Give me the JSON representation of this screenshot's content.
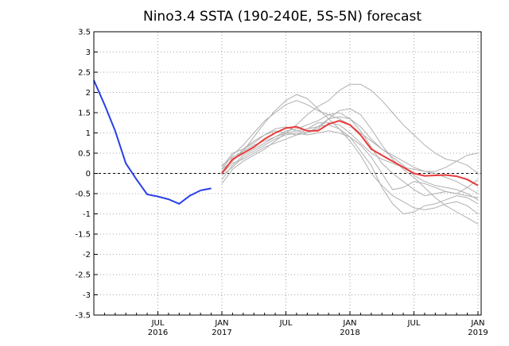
{
  "chart_data": {
    "type": "line",
    "title": "Nino3.4 SSTA (190-240E, 5S-5N) forecast",
    "xlabel": "",
    "ylabel": "",
    "ylim": [
      -3.5,
      3.5
    ],
    "y_ticks": [
      "3.5",
      "3",
      "2.5",
      "2",
      "1.5",
      "1",
      "0.5",
      "0",
      "-0.5",
      "-1",
      "-1.5",
      "-2",
      "-2.5",
      "-3",
      "-3.5"
    ],
    "x_ticks": [
      {
        "month": 6,
        "line1": "JUL",
        "line2": "2016"
      },
      {
        "month": 12,
        "line1": "JAN",
        "line2": "2017"
      },
      {
        "month": 18,
        "line1": "JUL",
        "line2": ""
      },
      {
        "month": 24,
        "line1": "JAN",
        "line2": "2018"
      },
      {
        "month": 30,
        "line1": "JUL",
        "line2": ""
      },
      {
        "month": 36,
        "line1": "JAN",
        "line2": "2019"
      }
    ],
    "x_unit": "months since JAN 2016",
    "xlim": [
      0,
      36.3
    ],
    "grid": true,
    "zero_line": true,
    "colors": {
      "observed": "#2a3fe8",
      "mean": "#e83a3a",
      "members": "#b0b0b0"
    },
    "series": [
      {
        "role": "observed",
        "x": [
          0,
          1,
          2,
          3,
          4,
          5,
          6,
          7,
          8,
          9,
          10,
          11
        ],
        "y": [
          2.3,
          1.7,
          1.05,
          0.25,
          -0.15,
          -0.52,
          -0.57,
          -0.64,
          -0.75,
          -0.55,
          -0.42,
          -0.37
        ]
      },
      {
        "role": "ensemble-mean",
        "x": [
          12,
          13,
          14,
          15,
          16,
          17,
          18,
          19,
          20,
          21,
          22,
          23,
          24,
          25,
          26,
          27,
          28,
          29,
          30,
          31,
          32,
          33,
          34,
          35,
          36
        ],
        "y": [
          0.0,
          0.35,
          0.5,
          0.65,
          0.85,
          1.0,
          1.12,
          1.15,
          1.05,
          1.05,
          1.22,
          1.3,
          1.2,
          0.95,
          0.6,
          0.45,
          0.3,
          0.15,
          0.0,
          -0.06,
          -0.05,
          -0.04,
          -0.07,
          -0.15,
          -0.3
        ]
      },
      {
        "role": "member",
        "x": [
          12,
          13,
          14,
          15,
          16,
          17,
          18,
          19,
          20,
          21,
          22,
          23,
          24,
          25,
          26,
          27,
          28,
          29,
          30,
          31,
          32,
          33,
          34,
          35,
          36
        ],
        "y": [
          0.15,
          0.5,
          0.6,
          0.75,
          0.95,
          1.1,
          1.15,
          1.05,
          1.0,
          1.1,
          1.35,
          1.55,
          1.6,
          1.45,
          1.1,
          0.7,
          0.35,
          0.1,
          -0.1,
          -0.35,
          -0.6,
          -0.8,
          -0.95,
          -1.1,
          -1.25
        ]
      },
      {
        "role": "member",
        "x": [
          12,
          13,
          14,
          15,
          16,
          17,
          18,
          19,
          20,
          21,
          22,
          23,
          24,
          25,
          26,
          27,
          28,
          29,
          30,
          31,
          32,
          33,
          34,
          35,
          36
        ],
        "y": [
          0.1,
          0.45,
          0.7,
          1.0,
          1.3,
          1.5,
          1.7,
          1.8,
          1.7,
          1.55,
          1.45,
          1.35,
          1.2,
          1.0,
          0.8,
          0.6,
          0.45,
          0.3,
          0.15,
          0.05,
          0.0,
          -0.1,
          -0.2,
          -0.35,
          -0.5
        ]
      },
      {
        "role": "member",
        "x": [
          12,
          13,
          14,
          15,
          16,
          17,
          18,
          19,
          20,
          21,
          22,
          23,
          24,
          25,
          26,
          27,
          28,
          29,
          30,
          31,
          32,
          33,
          34,
          35,
          36
        ],
        "y": [
          -0.15,
          0.2,
          0.45,
          0.6,
          0.75,
          0.9,
          1.05,
          1.1,
          1.2,
          1.3,
          1.45,
          1.5,
          1.35,
          1.05,
          0.65,
          0.25,
          0.0,
          -0.2,
          -0.4,
          -0.55,
          -0.5,
          -0.45,
          -0.5,
          -0.55,
          -0.6
        ]
      },
      {
        "role": "member",
        "x": [
          12,
          13,
          14,
          15,
          16,
          17,
          18,
          19,
          20,
          21,
          22,
          23,
          24,
          25,
          26,
          27,
          28,
          29,
          30,
          31,
          32,
          33,
          34,
          35,
          36
        ],
        "y": [
          0.05,
          0.3,
          0.55,
          0.9,
          1.25,
          1.55,
          1.8,
          1.95,
          1.85,
          1.6,
          1.35,
          1.1,
          0.8,
          0.45,
          0.0,
          -0.3,
          -0.55,
          -0.7,
          -0.85,
          -0.9,
          -0.85,
          -0.75,
          -0.7,
          -0.8,
          -1.0
        ]
      },
      {
        "role": "member",
        "x": [
          12,
          13,
          14,
          15,
          16,
          17,
          18,
          19,
          20,
          21,
          22,
          23,
          24,
          25,
          26,
          27,
          28,
          29,
          30,
          31,
          32,
          33,
          34,
          35,
          36
        ],
        "y": [
          -0.25,
          0.1,
          0.3,
          0.45,
          0.6,
          0.8,
          1.0,
          1.2,
          1.45,
          1.65,
          1.8,
          2.05,
          2.2,
          2.2,
          2.05,
          1.8,
          1.5,
          1.2,
          0.95,
          0.7,
          0.5,
          0.35,
          0.3,
          0.2,
          0.0
        ]
      },
      {
        "role": "member",
        "x": [
          12,
          13,
          14,
          15,
          16,
          17,
          18,
          19,
          20,
          21,
          22,
          23,
          24,
          25,
          26,
          27,
          28,
          29,
          30,
          31,
          32,
          33,
          34,
          35,
          36
        ],
        "y": [
          0.2,
          0.4,
          0.55,
          0.7,
          0.8,
          0.9,
          1.0,
          1.05,
          1.1,
          1.15,
          1.2,
          1.1,
          0.9,
          0.55,
          0.2,
          -0.35,
          -0.75,
          -1.0,
          -0.95,
          -0.8,
          -0.75,
          -0.65,
          -0.55,
          -0.6,
          -0.75
        ]
      },
      {
        "role": "member",
        "x": [
          12,
          13,
          14,
          15,
          16,
          17,
          18,
          19,
          20,
          21,
          22,
          23,
          24,
          25,
          26,
          27,
          28,
          29,
          30,
          31,
          32,
          33,
          34,
          35,
          36
        ],
        "y": [
          0.0,
          0.25,
          0.35,
          0.5,
          0.65,
          0.75,
          0.85,
          0.95,
          1.1,
          1.25,
          1.25,
          1.2,
          1.0,
          0.75,
          0.5,
          0.35,
          0.25,
          0.15,
          0.1,
          0.05,
          0.05,
          0.15,
          0.3,
          0.45,
          0.5
        ]
      },
      {
        "role": "member",
        "x": [
          12,
          13,
          14,
          15,
          16,
          17,
          18,
          19,
          20,
          21,
          22,
          23,
          24,
          25,
          26,
          27,
          28,
          29,
          30,
          31,
          32,
          33,
          34,
          35,
          36
        ],
        "y": [
          0.1,
          0.3,
          0.6,
          0.8,
          0.95,
          1.05,
          1.0,
          0.95,
          1.0,
          1.15,
          1.35,
          1.4,
          1.35,
          1.15,
          0.85,
          0.6,
          0.4,
          0.2,
          -0.05,
          -0.2,
          -0.3,
          -0.35,
          -0.4,
          -0.5,
          -0.65
        ]
      },
      {
        "role": "member",
        "x": [
          12,
          13,
          14,
          15,
          16,
          17,
          18,
          19,
          20,
          21,
          22,
          23,
          24,
          25,
          26,
          27,
          28,
          29,
          30,
          31,
          32,
          33,
          34,
          35,
          36
        ],
        "y": [
          -0.05,
          0.15,
          0.4,
          0.55,
          0.7,
          0.85,
          0.95,
          1.0,
          0.95,
          1.0,
          1.05,
          1.0,
          0.9,
          0.7,
          0.4,
          0.0,
          -0.4,
          -0.35,
          -0.2,
          -0.25,
          -0.35,
          -0.45,
          -0.5,
          -0.35,
          -0.15
        ]
      }
    ]
  }
}
